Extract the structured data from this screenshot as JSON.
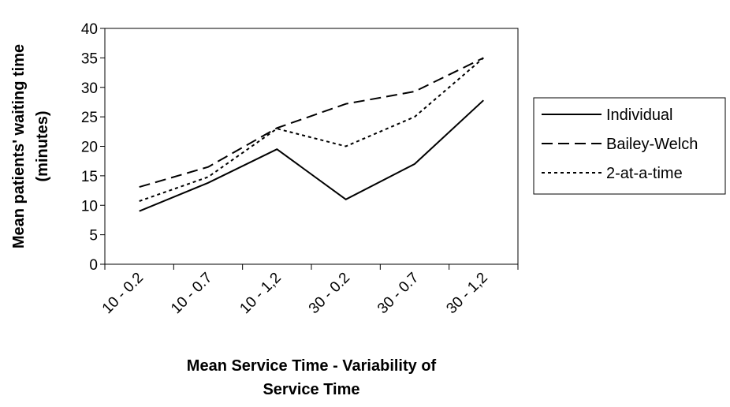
{
  "chart_data": {
    "type": "line",
    "title": "",
    "xlabel": "Mean Service Time - Variability of Service Time",
    "xlabel_lines": [
      "Mean Service Time - Variability of",
      "Service Time"
    ],
    "ylabel": "Mean patients' waiting time (minutes)",
    "ylabel_lines": [
      "Mean patients' waiting time",
      "(minutes)"
    ],
    "categories": [
      "10 - 0.2",
      "10 - 0.7",
      "10 - 1,2",
      "30 - 0.2",
      "30 - 0.7",
      "30 - 1,2"
    ],
    "ylim": [
      0,
      40
    ],
    "yticks": [
      0,
      5,
      10,
      15,
      20,
      25,
      30,
      35,
      40
    ],
    "grid": false,
    "legend_position": "right",
    "series": [
      {
        "name": "Individual",
        "values": [
          9,
          13.8,
          19.5,
          11,
          17,
          27.8
        ],
        "style": "solid",
        "color": "#000000"
      },
      {
        "name": "Bailey-Welch",
        "values": [
          13.1,
          16.5,
          23.1,
          27.2,
          29.3,
          35
        ],
        "style": "dashed",
        "color": "#000000"
      },
      {
        "name": "2-at-a-time",
        "values": [
          10.7,
          14.8,
          23,
          20,
          25,
          35
        ],
        "style": "dotted",
        "color": "#000000"
      }
    ]
  }
}
